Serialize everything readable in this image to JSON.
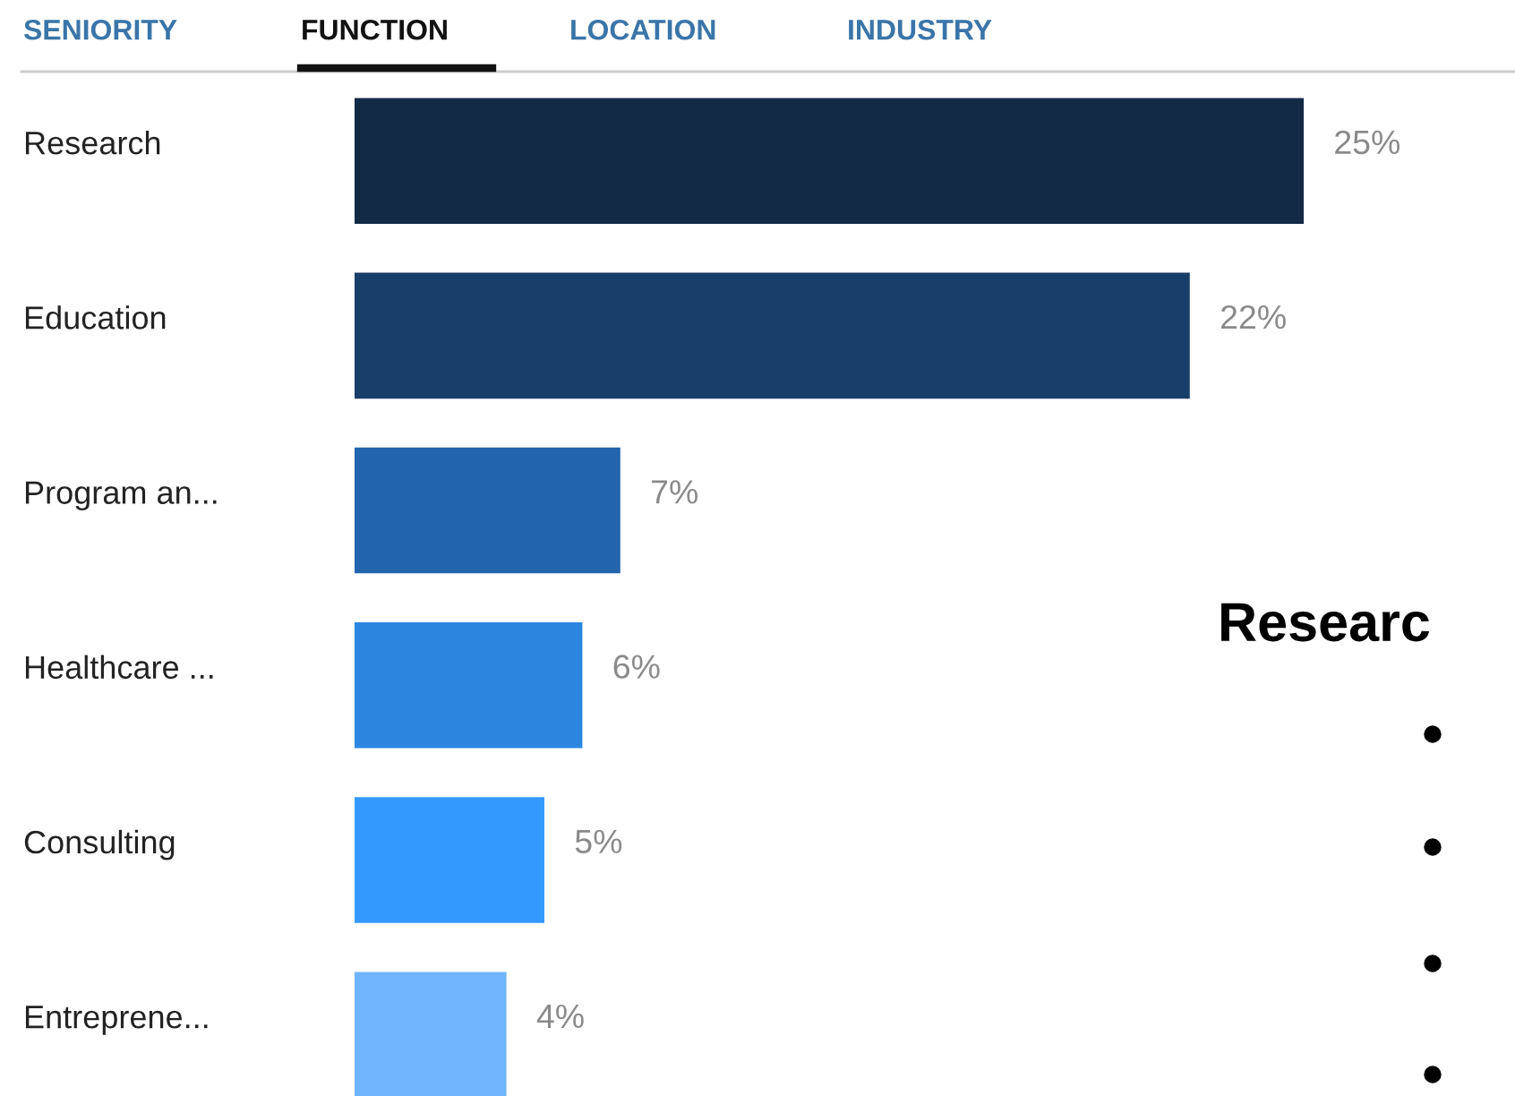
{
  "chart_data": {
    "type": "bar",
    "orientation": "horizontal",
    "categories": [
      "Research",
      "Education",
      "Program an...",
      "Healthcare ...",
      "Consulting",
      "Entreprene..."
    ],
    "values": [
      25,
      22,
      7,
      6,
      5,
      4
    ],
    "colors": [
      "#132a45",
      "#183f6a",
      "#2365ad",
      "#2b86e0",
      "#3399ff",
      "#70b5fb"
    ],
    "value_labels": [
      "25%",
      "22%",
      "7%",
      "6%",
      "5%",
      "4%"
    ],
    "annotations": [
      "SENIORITY",
      "FUNCTION",
      "LOCATION",
      "INDUSTRY",
      "Researc"
    ]
  }
}
